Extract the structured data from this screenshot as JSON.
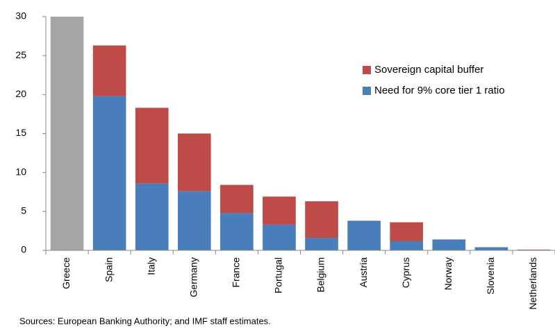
{
  "chart_data": {
    "type": "stacked-bar",
    "note": "Sources: European Banking Authority; and IMF staff estimates.",
    "categories": [
      "Greece",
      "Spain",
      "Italy",
      "Germany",
      "France",
      "Portugal",
      "Belgium",
      "Austria",
      "Cyprus",
      "Norway",
      "Slovenia",
      "Netherlands"
    ],
    "series": [
      {
        "name": "Need for 9% core tier 1 ratio",
        "color": "#4a7ebb",
        "colors": [
          "#a6a6a6",
          "#4a7ebb",
          "#4a7ebb",
          "#4a7ebb",
          "#4a7ebb",
          "#4a7ebb",
          "#4a7ebb",
          "#4a7ebb",
          "#4a7ebb",
          "#4a7ebb",
          "#4a7ebb",
          "#4a7ebb"
        ],
        "values": [
          30,
          19.8,
          8.6,
          7.6,
          4.8,
          3.3,
          1.6,
          3.8,
          1.2,
          1.4,
          0.4,
          0
        ]
      },
      {
        "name": "Sovereign capital buffer",
        "color": "#be4b48",
        "values": [
          0,
          6.5,
          9.7,
          7.4,
          3.6,
          3.6,
          4.7,
          0,
          2.4,
          0,
          0,
          0.1
        ]
      }
    ],
    "ylim": [
      0,
      30
    ],
    "yticks": [
      0,
      5,
      10,
      15,
      20,
      25,
      30
    ],
    "grid": false,
    "legend": "upper right"
  }
}
